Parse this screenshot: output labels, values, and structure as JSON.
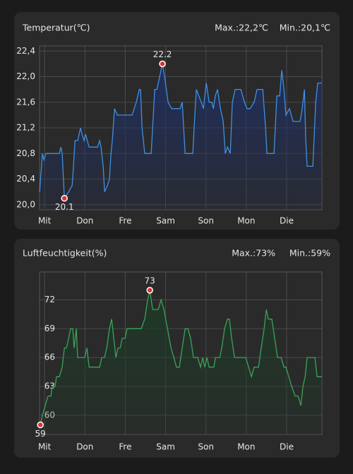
{
  "chart_data": [
    {
      "type": "line",
      "title": "Temperatur(℃)",
      "max_label": "Max.:22,2℃",
      "min_label": "Min.:20,1℃",
      "x": [
        -2.9,
        -1.3,
        -0.4,
        0.8,
        8.8,
        9.7,
        10.5,
        11.8,
        14.3,
        16.4,
        17.2,
        18.1,
        19.7,
        21.4,
        22.3,
        23.5,
        24.4,
        26.5,
        31.5,
        32.8,
        33.6,
        34.9,
        35.7,
        37.4,
        38.6,
        39.5,
        40.3,
        41.6,
        43.3,
        52.1,
        53.3,
        54.6,
        56.3,
        57.1,
        58.0,
        59.6,
        63.4,
        64.3,
        65.5,
        66.8,
        68.5,
        70.1,
        71.4,
        73.5,
        75.6,
        80.6,
        81.9,
        83.6,
        88.2,
        89.0,
        90.3,
        93.2,
        94.5,
        96.2,
        97.9,
        99.5,
        100.4,
        101.6,
        102.9,
        104.6,
        106.3,
        107.5,
        108.8,
        110.5,
        111.7,
        113.4,
        116.8,
        118.9,
        120.5,
        122.2,
        124.7,
        126.4,
        129.8,
        131.5,
        132.3,
        136.5,
        138.2,
        139.9,
        141.1,
        142.4,
        143.6,
        145.7,
        147.8,
        152.0,
        153.3,
        154.6,
        155.4,
        156.2,
        159.6,
        161.3,
        162.5,
        165
      ],
      "values": [
        20.2,
        20.8,
        20.7,
        20.8,
        20.8,
        20.9,
        20.8,
        20.1,
        20.2,
        20.3,
        20.6,
        21.0,
        21.0,
        21.2,
        21.1,
        21.0,
        21.1,
        20.9,
        20.9,
        21.0,
        20.9,
        20.6,
        20.2,
        20.3,
        20.4,
        20.8,
        21.0,
        21.5,
        21.4,
        21.4,
        21.5,
        21.6,
        21.8,
        21.8,
        21.2,
        20.8,
        20.8,
        21.2,
        21.8,
        21.8,
        22.0,
        22.2,
        22.0,
        21.6,
        21.5,
        21.5,
        21.6,
        20.8,
        20.8,
        21.2,
        21.8,
        21.6,
        21.5,
        21.9,
        21.6,
        21.6,
        21.5,
        21.7,
        21.8,
        21.5,
        21.3,
        20.8,
        20.9,
        20.8,
        21.6,
        21.8,
        21.8,
        21.6,
        21.5,
        21.5,
        21.6,
        21.8,
        21.8,
        21.2,
        20.8,
        20.8,
        21.7,
        21.7,
        22.1,
        21.8,
        21.4,
        21.5,
        21.3,
        21.3,
        21.5,
        21.8,
        21.0,
        20.6,
        20.6,
        21.6,
        21.9,
        21.9
      ],
      "xlim": [
        -3,
        165
      ],
      "xticks": [
        {
          "value": 0,
          "label": "Mit"
        },
        {
          "value": 24,
          "label": "Don"
        },
        {
          "value": 48,
          "label": "Fre"
        },
        {
          "value": 72,
          "label": "Sam"
        },
        {
          "value": 96,
          "label": "Son"
        },
        {
          "value": 120,
          "label": "Mon"
        },
        {
          "value": 144,
          "label": "Die"
        }
      ],
      "ylim": [
        19.92,
        22.48
      ],
      "yticks": [
        {
          "value": 20.0,
          "label": "20,0"
        },
        {
          "value": 20.4,
          "label": "20,4"
        },
        {
          "value": 20.8,
          "label": "20,8"
        },
        {
          "value": 21.2,
          "label": "21,2"
        },
        {
          "value": 21.6,
          "label": "21,6"
        },
        {
          "value": 22.0,
          "label": "22,0"
        },
        {
          "value": 22.4,
          "label": "22,4"
        }
      ],
      "color": "#3f8fe2",
      "fill_color": "#1f2f63",
      "grid": true,
      "annotations": [
        {
          "x": 70.1,
          "value": 22.2
        },
        {
          "x": 11.8,
          "value": 20.1
        }
      ]
    },
    {
      "type": "line",
      "title": "Luftfeuchtigkeit(%)",
      "max_label": "Max.:73%",
      "min_label": "Min.:59%",
      "x": [
        -2.5,
        -1.3,
        0.4,
        2.1,
        3.8,
        4.6,
        6.3,
        7.1,
        8.8,
        10.5,
        11.8,
        13.0,
        14.3,
        15.5,
        16.8,
        17.6,
        18.9,
        19.7,
        22.3,
        23.9,
        25.2,
        26.5,
        32.8,
        34.0,
        35.7,
        37.0,
        38.6,
        39.9,
        41.2,
        42.4,
        43.7,
        45.0,
        46.2,
        47.9,
        49.1,
        57.5,
        59.6,
        61.3,
        62.6,
        64.3,
        65.9,
        67.6,
        69.3,
        71.0,
        73.1,
        75.2,
        76.9,
        78.5,
        80.2,
        81.9,
        83.6,
        85.3,
        86.9,
        88.6,
        91.1,
        92.8,
        94.1,
        95.3,
        96.6,
        97.9,
        100.8,
        101.6,
        102.5,
        104.2,
        105.4,
        107.1,
        108.8,
        110.0,
        111.3,
        113.0,
        114.7,
        116.3,
        118.0,
        119.7,
        121.4,
        123.1,
        124.7,
        127.3,
        128.9,
        130.6,
        131.9,
        133.1,
        135.2,
        136.9,
        138.6,
        140.7,
        142.4,
        143.6,
        145.3,
        147.0,
        149.1,
        150.8,
        152.5,
        153.7,
        155.0,
        156.2,
        160.9,
        162.1,
        165
      ],
      "values": [
        59,
        60,
        61,
        62,
        62,
        63,
        63,
        64,
        64,
        65,
        67,
        67,
        68,
        69,
        69,
        67,
        69,
        66,
        66,
        66,
        67,
        65,
        65,
        66,
        66,
        67,
        69,
        70,
        68,
        66,
        67,
        67,
        68,
        68,
        69,
        69,
        70,
        72,
        73,
        71,
        71,
        71,
        72,
        71,
        69,
        67,
        66,
        65,
        65,
        67,
        69,
        69,
        68,
        66,
        66,
        65,
        66,
        65,
        66,
        65,
        65,
        66,
        66,
        66,
        67,
        69,
        70,
        70,
        68,
        66,
        66,
        66,
        66,
        66,
        65,
        64,
        65,
        65,
        67,
        69,
        71,
        70,
        70,
        68,
        66,
        66,
        65,
        65,
        64,
        63,
        62,
        62,
        61,
        63,
        64,
        66,
        66,
        64,
        64
      ],
      "xlim": [
        -3,
        165
      ],
      "xticks": [
        {
          "value": 0,
          "label": "Mit"
        },
        {
          "value": 24,
          "label": "Don"
        },
        {
          "value": 48,
          "label": "Fre"
        },
        {
          "value": 72,
          "label": "Sam"
        },
        {
          "value": 96,
          "label": "Son"
        },
        {
          "value": 120,
          "label": "Mon"
        },
        {
          "value": 144,
          "label": "Die"
        }
      ],
      "ylim": [
        58.0,
        74.9
      ],
      "yticks": [
        60,
        63,
        66,
        69,
        72
      ],
      "color": "#3aa35a",
      "fill_color": "#1d3a26",
      "grid": true,
      "annotations": [
        {
          "x": 62.6,
          "value": 73
        },
        {
          "x": -2.5,
          "value": 59
        }
      ]
    }
  ]
}
